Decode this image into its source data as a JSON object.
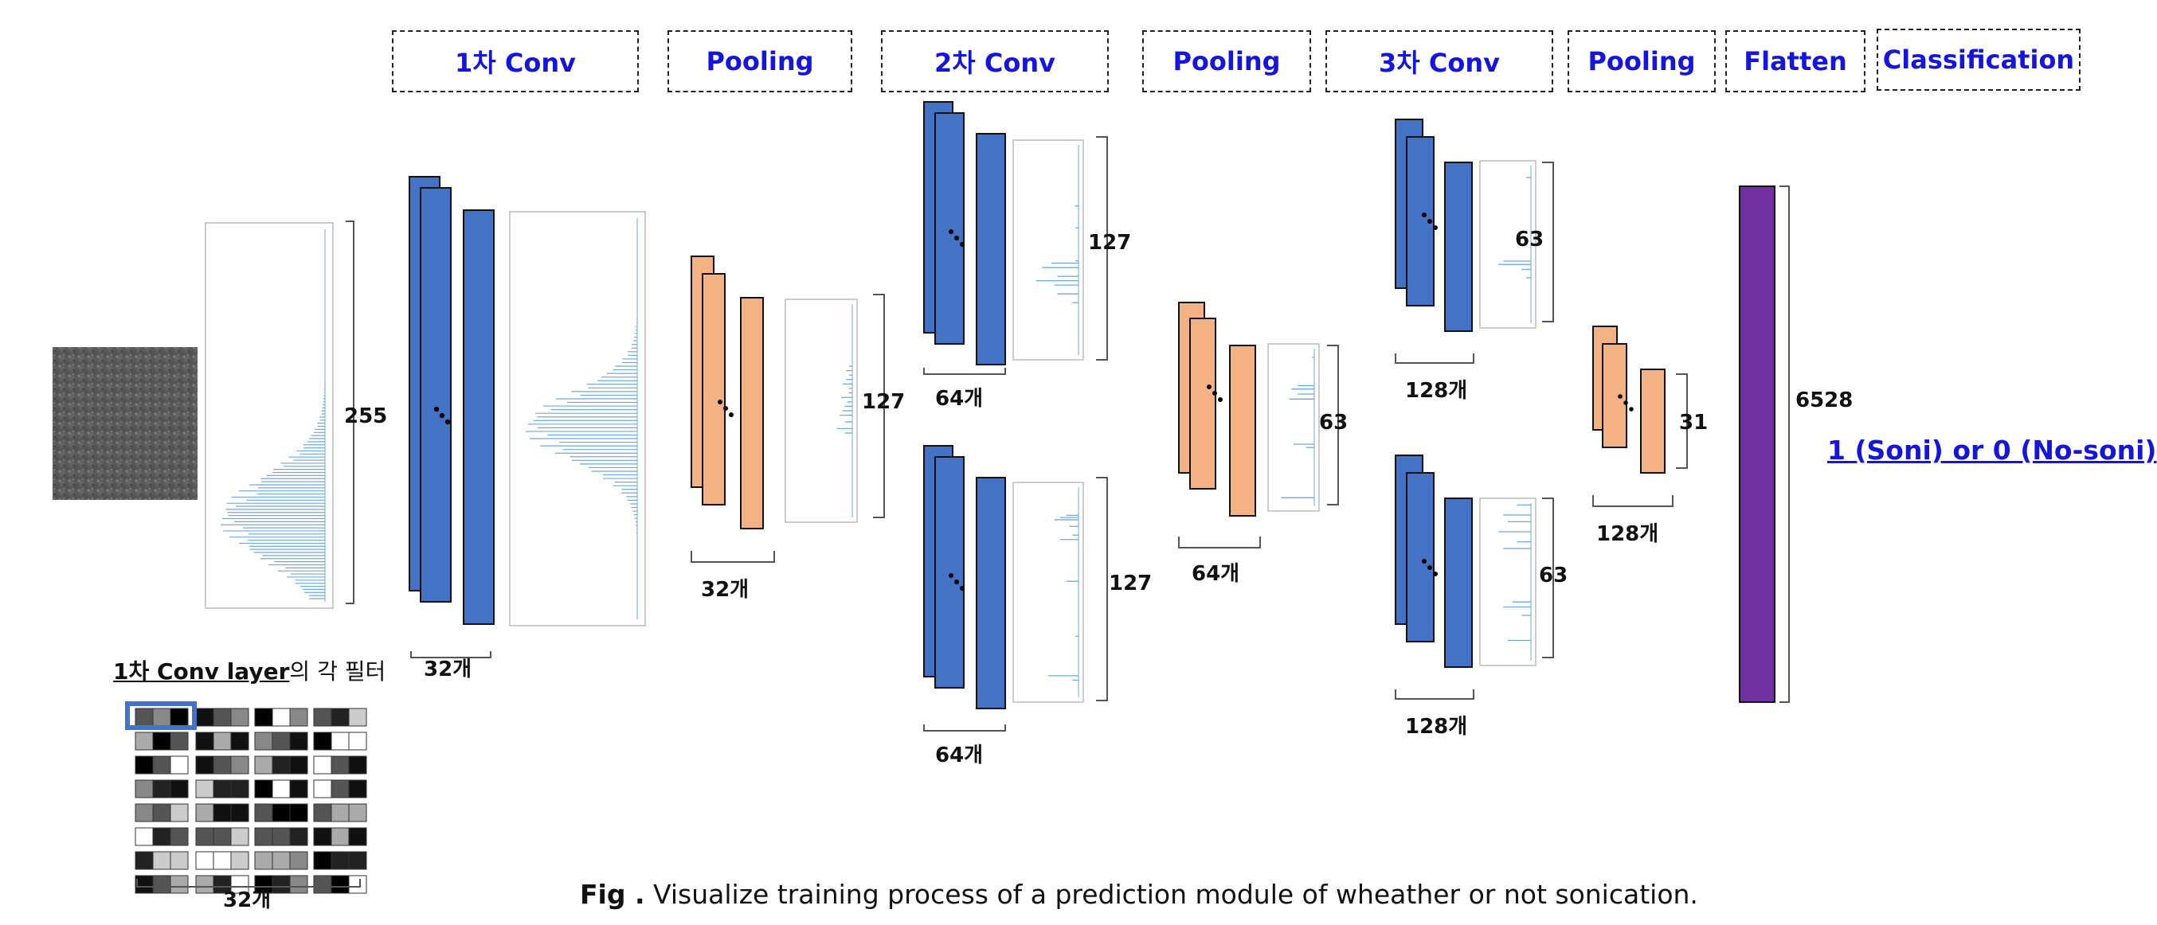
{
  "stages": [
    {
      "label": "1차 Conv"
    },
    {
      "label": "Pooling"
    },
    {
      "label": "2차 Conv"
    },
    {
      "label": "Pooling"
    },
    {
      "label": "3차 Conv"
    },
    {
      "label": "Pooling"
    },
    {
      "label": "Flatten"
    },
    {
      "label": "Classification"
    }
  ],
  "sizes": {
    "input_hist": "255",
    "pool1_hist": "127",
    "conv2_top_hist": "127",
    "conv2_bottom_hist": "127",
    "pool2_hist": "63",
    "conv3_top_hist": "63",
    "conv3_bottom_hist": "63",
    "pool3_hist": "31",
    "flatten": "6528"
  },
  "counts": {
    "conv1": "32개",
    "pool1": "32개",
    "conv2_top": "64개",
    "conv2_bottom": "64개",
    "pool2": "64개",
    "conv3_top": "128개",
    "conv3_bottom": "128개",
    "pool3": "128개",
    "filters": "32개"
  },
  "output_label": "1 (Soni) or 0 (No-soni)",
  "filters_title": {
    "prefix": "1차 Conv layer",
    "suffix": "의 각 필터"
  },
  "caption": {
    "prefix": "Fig .",
    "text": " Visualize training process of a prediction module of wheather or not sonication."
  },
  "colors": {
    "conv": "#4472c4",
    "pool": "#f4b183",
    "flatten": "#7030a0",
    "stage_text": "#1515e0",
    "hist_line": "#6fa8dc"
  }
}
